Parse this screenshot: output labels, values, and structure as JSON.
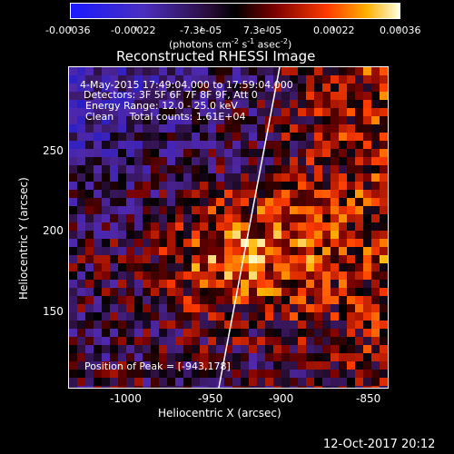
{
  "colorbar": {
    "ticks": [
      "-0.00036",
      "-0.00022",
      "-7.3e-05",
      "7.3e-05",
      "0.00022",
      "0.00036"
    ],
    "unit_main": "(photons cm",
    "unit_exp1": "-2",
    "unit_mid": " s",
    "unit_exp2": "-1",
    "unit_end": " asec",
    "unit_exp3": "-2",
    "unit_close": ")"
  },
  "title": "Reconstructed RHESSI Image",
  "info": {
    "time_range": "4-May-2015 17:49:04.000 to 17:59:04.000",
    "detectors": "Detectors: 3F 5F 6F 7F 8F 9F, Att 0",
    "energy": "Energy Range: 12.0 - 25.0 keV",
    "clean": "Clean     Total counts: 1.61E+04"
  },
  "peak": "Position of Peak = [-943,178]",
  "axes": {
    "xlabel": "Heliocentric X (arcsec)",
    "ylabel": "Heliocentric Y (arcsec)",
    "xticks": [
      "-1000",
      "-950",
      "-900",
      "-850"
    ],
    "yticks": [
      "150",
      "200",
      "250"
    ]
  },
  "footer_timestamp": "12-Oct-2017 20:12"
}
